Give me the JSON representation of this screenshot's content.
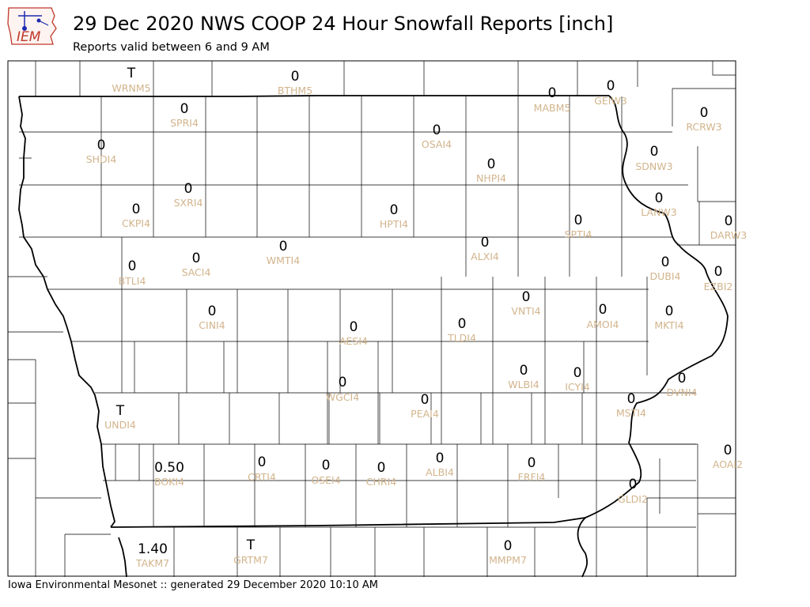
{
  "header": {
    "logo_text": "IEM",
    "title": "29 Dec 2020 NWS COOP 24 Hour Snowfall Reports [inch]",
    "subtitle": "Reports valid between 6 and 9 AM"
  },
  "footer": {
    "credit": "Iowa Environmental Mesonet :: generated 29 December 2020 10:10 AM"
  },
  "colors": {
    "value_text": "#000000",
    "station_label": "#d2b48c",
    "county_lines": "#000000",
    "logo_red": "#c0392b",
    "logo_blue": "#1f2bb0"
  },
  "stations": [
    {
      "id": "WRNM5",
      "value": "T"
    },
    {
      "id": "BTHM5",
      "value": "0"
    },
    {
      "id": "MABM5",
      "value": "0"
    },
    {
      "id": "GEIW3",
      "value": "0"
    },
    {
      "id": "SPRI4",
      "value": "0"
    },
    {
      "id": "RCRW3",
      "value": "0"
    },
    {
      "id": "OSAI4",
      "value": "0"
    },
    {
      "id": "SHDI4",
      "value": "0"
    },
    {
      "id": "SDNW3",
      "value": "0"
    },
    {
      "id": "NHPI4",
      "value": "0"
    },
    {
      "id": "SXRI4",
      "value": "0"
    },
    {
      "id": "LANW3",
      "value": "0"
    },
    {
      "id": "CKPI4",
      "value": "0"
    },
    {
      "id": "HPTI4",
      "value": "0"
    },
    {
      "id": "SPTI4",
      "value": "0"
    },
    {
      "id": "DARW3",
      "value": "0"
    },
    {
      "id": "ALXI4",
      "value": "0"
    },
    {
      "id": "WMTI4",
      "value": "0"
    },
    {
      "id": "SACI4",
      "value": "0"
    },
    {
      "id": "BTLI4",
      "value": "0"
    },
    {
      "id": "DUBI4",
      "value": "0"
    },
    {
      "id": "EZBI2",
      "value": "0"
    },
    {
      "id": "VNTI4",
      "value": "0"
    },
    {
      "id": "CINI4",
      "value": "0"
    },
    {
      "id": "AMOI4",
      "value": "0"
    },
    {
      "id": "MKTI4",
      "value": "0"
    },
    {
      "id": "TLDI4",
      "value": "0"
    },
    {
      "id": "AESI4",
      "value": "0"
    },
    {
      "id": "WLBI4",
      "value": "0"
    },
    {
      "id": "ICYI4",
      "value": "0"
    },
    {
      "id": "WGCI4",
      "value": "0"
    },
    {
      "id": "DVNI4",
      "value": "0"
    },
    {
      "id": "UNDI4",
      "value": "T"
    },
    {
      "id": "PEAI4",
      "value": "0"
    },
    {
      "id": "MSTI4",
      "value": "0"
    },
    {
      "id": "AOAI2",
      "value": "0"
    },
    {
      "id": "BOKI4",
      "value": "0.50"
    },
    {
      "id": "CRTI4",
      "value": "0"
    },
    {
      "id": "OSEI4",
      "value": "0"
    },
    {
      "id": "CHRI4",
      "value": "0"
    },
    {
      "id": "ALBI4",
      "value": "0"
    },
    {
      "id": "FRFI4",
      "value": "0"
    },
    {
      "id": "GLDI2",
      "value": "0"
    },
    {
      "id": "TAKM7",
      "value": "1.40"
    },
    {
      "id": "GRTM7",
      "value": "T"
    },
    {
      "id": "MMPM7",
      "value": "0"
    }
  ]
}
